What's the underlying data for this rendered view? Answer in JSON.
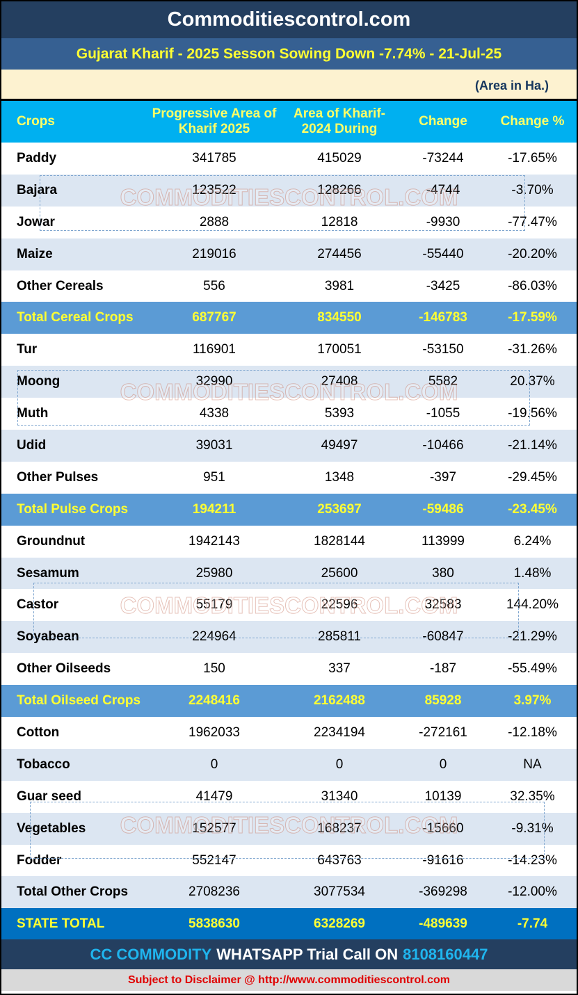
{
  "title": "Commoditiescontrol.com",
  "subtitle": "Gujarat Kharif - 2025 Sesson Sowing Down -7.74% - 21-Jul-25",
  "unit": "(Area in Ha.)",
  "headers": [
    "Crops",
    "Progressive Area of Kharif 2025",
    "Area of Kharif-2024 During",
    "Change",
    "Change  %"
  ],
  "rows": [
    [
      "Paddy",
      "341785",
      "415029",
      "-73244",
      "-17.65%"
    ],
    [
      "Bajara",
      "123522",
      "128266",
      "-4744",
      "-3.70%"
    ],
    [
      "Jowar",
      "2888",
      "12818",
      "-9930",
      "-77.47%"
    ],
    [
      "Maize",
      "219016",
      "274456",
      "-55440",
      "-20.20%"
    ],
    [
      "Other Cereals",
      "556",
      "3981",
      "-3425",
      "-86.03%"
    ],
    [
      "Total Cereal Crops",
      "687767",
      "834550",
      "-146783",
      "-17.59%"
    ],
    [
      "Tur",
      "116901",
      "170051",
      "-53150",
      "-31.26%"
    ],
    [
      "Moong",
      "32990",
      "27408",
      "5582",
      "20.37%"
    ],
    [
      "Muth",
      "4338",
      "5393",
      "-1055",
      "-19.56%"
    ],
    [
      "Udid",
      "39031",
      "49497",
      "-10466",
      "-21.14%"
    ],
    [
      "Other Pulses",
      "951",
      "1348",
      "-397",
      "-29.45%"
    ],
    [
      "Total Pulse Crops",
      "194211",
      "253697",
      "-59486",
      "-23.45%"
    ],
    [
      "Groundnut",
      "1942143",
      "1828144",
      "113999",
      "6.24%"
    ],
    [
      "Sesamum",
      "25980",
      "25600",
      "380",
      "1.48%"
    ],
    [
      "Castor",
      "55179",
      "22596",
      "32583",
      "144.20%"
    ],
    [
      "Soyabean",
      "224964",
      "285811",
      "-60847",
      "-21.29%"
    ],
    [
      "Other Oilseeds",
      "150",
      "337",
      "-187",
      "-55.49%"
    ],
    [
      "Total Oilseed Crops",
      "2248416",
      "2162488",
      "85928",
      "3.97%"
    ],
    [
      "Cotton",
      "1962033",
      "2234194",
      "-272161",
      "-12.18%"
    ],
    [
      "Tobacco",
      "0",
      "0",
      "0",
      "NA"
    ],
    [
      "Guar seed",
      "41479",
      "31340",
      "10139",
      "32.35%"
    ],
    [
      "Vegetables",
      "152577",
      "168237",
      "-15660",
      "-9.31%"
    ],
    [
      "Fodder",
      "552147",
      "643763",
      "-91616",
      "-14.23%"
    ],
    [
      "Total Other Crops",
      "2708236",
      "3077534",
      "-369298",
      "-12.00%"
    ]
  ],
  "total_rows": [
    5,
    11,
    17
  ],
  "state_total": [
    "STATE TOTAL",
    "5838630",
    "6328269",
    "-489639",
    "-7.74"
  ],
  "footer": {
    "brand": "CC COMMODITY",
    "text": "WHATSAPP Trial Call ON",
    "phone": "8108160447"
  },
  "disclaimer": "Subject to Disclaimer @  http://www.commoditiescontrol.com",
  "watermark": "COMMODITIESCONTROL.COM"
}
